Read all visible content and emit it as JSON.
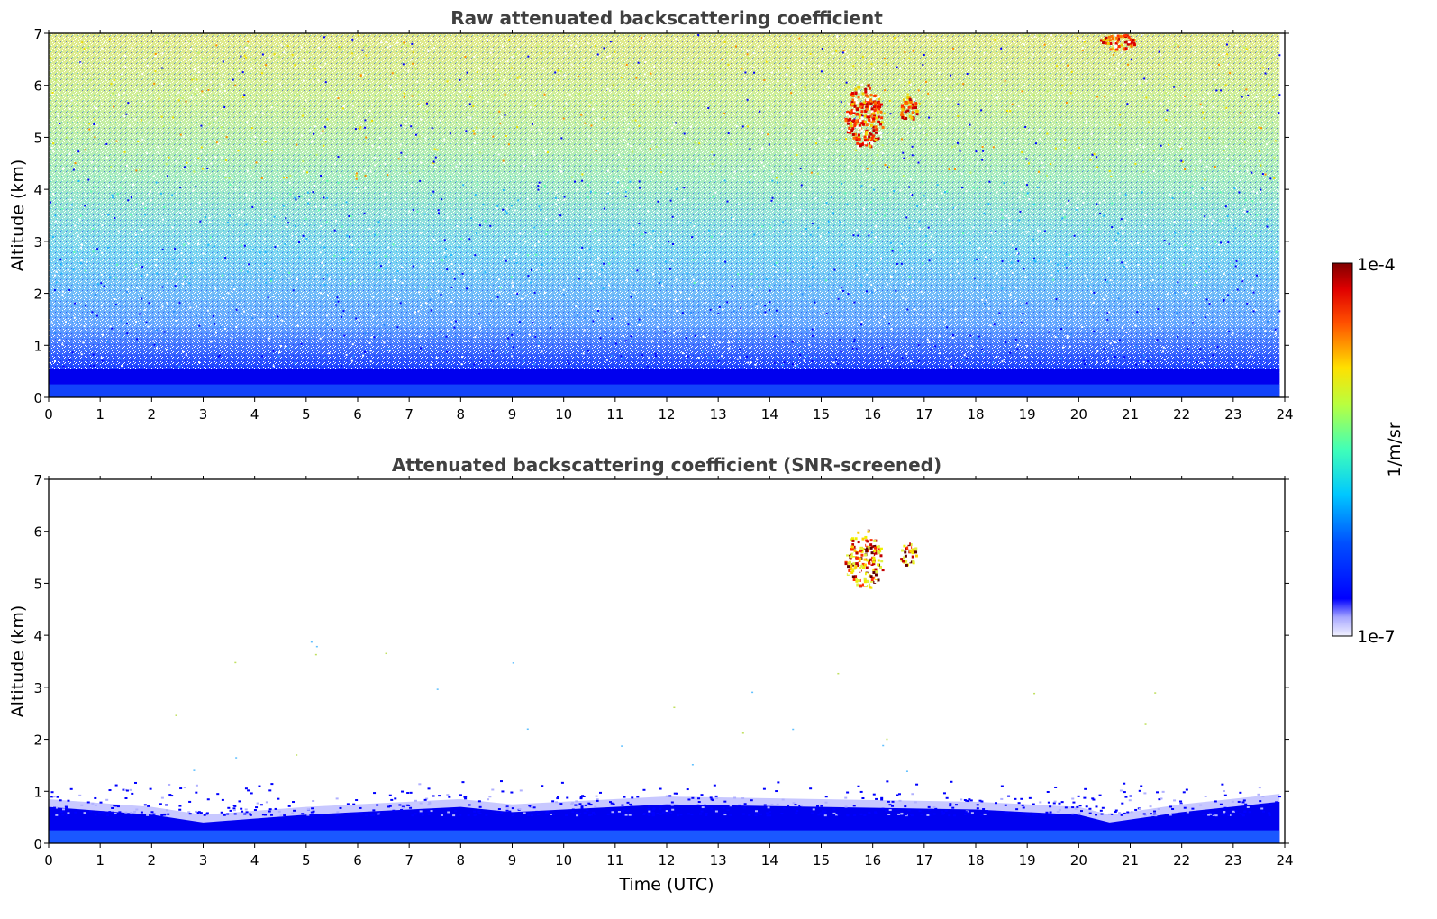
{
  "chart_data": [
    {
      "type": "heatmap",
      "title": "Raw attenuated backscattering coefficient",
      "xlabel": "",
      "ylabel": "Altitude (km)",
      "xlim": [
        0,
        24
      ],
      "ylim": [
        0,
        7
      ],
      "x_ticks": [
        "0",
        "1",
        "2",
        "3",
        "4",
        "5",
        "6",
        "7",
        "8",
        "9",
        "10",
        "11",
        "12",
        "13",
        "14",
        "15",
        "16",
        "17",
        "18",
        "19",
        "20",
        "21",
        "22",
        "23",
        "24"
      ],
      "y_ticks": [
        "0",
        "1",
        "2",
        "3",
        "4",
        "5",
        "6",
        "7"
      ],
      "data_extent_hours": [
        0,
        23.9
      ],
      "field": "noisy backscatter; dense blue boundary layer below about 0.5 km; noise grading from blue near the ground to green/yellow near 7 km",
      "cloud_features": [
        {
          "time_range": [
            15.45,
            16.2
          ],
          "alt_range": [
            4.8,
            6.05
          ],
          "level": "high (red)"
        },
        {
          "time_range": [
            16.5,
            16.85
          ],
          "alt_range": [
            5.3,
            5.8
          ],
          "level": "high (orange)"
        },
        {
          "time_range": [
            20.4,
            21.1
          ],
          "alt_range": [
            6.7,
            7.0
          ],
          "level": "high (orange-red)"
        }
      ]
    },
    {
      "type": "heatmap",
      "title": "Attenuated backscattering coefficient (SNR-screened)",
      "xlabel": "Time (UTC)",
      "ylabel": "Altitude (km)",
      "xlim": [
        0,
        24
      ],
      "ylim": [
        0,
        7
      ],
      "x_ticks": [
        "0",
        "1",
        "2",
        "3",
        "4",
        "5",
        "6",
        "7",
        "8",
        "9",
        "10",
        "11",
        "12",
        "13",
        "14",
        "15",
        "16",
        "17",
        "18",
        "19",
        "20",
        "21",
        "22",
        "23",
        "24"
      ],
      "y_ticks": [
        "0",
        "1",
        "2",
        "3",
        "4",
        "5",
        "6",
        "7"
      ],
      "data_extent_hours": [
        0,
        23.9
      ],
      "field": "screened backscatter; blue boundary layer from ground to about 0.5-0.8 km, sparse speckles up to about 1.2 km",
      "boundary_layer_top_km": [
        [
          0,
          0.7
        ],
        [
          2,
          0.55
        ],
        [
          3,
          0.4
        ],
        [
          5,
          0.55
        ],
        [
          8,
          0.7
        ],
        [
          9,
          0.6
        ],
        [
          12,
          0.75
        ],
        [
          15,
          0.7
        ],
        [
          18,
          0.65
        ],
        [
          20,
          0.55
        ],
        [
          20.6,
          0.4
        ],
        [
          22,
          0.6
        ],
        [
          23.9,
          0.8
        ]
      ],
      "cloud_features": [
        {
          "time_range": [
            15.45,
            16.2
          ],
          "alt_range": [
            4.9,
            6.05
          ],
          "level": "high (yellow to dark red)"
        },
        {
          "time_range": [
            16.5,
            16.85
          ],
          "alt_range": [
            5.35,
            5.8
          ],
          "level": "high (yellow/red)"
        }
      ]
    }
  ],
  "colorbar": {
    "top_label": "1e-4",
    "bottom_label": "1e-7",
    "units_label": "1/m/sr",
    "scale": "log",
    "colormap": "jet (white at low end)"
  }
}
